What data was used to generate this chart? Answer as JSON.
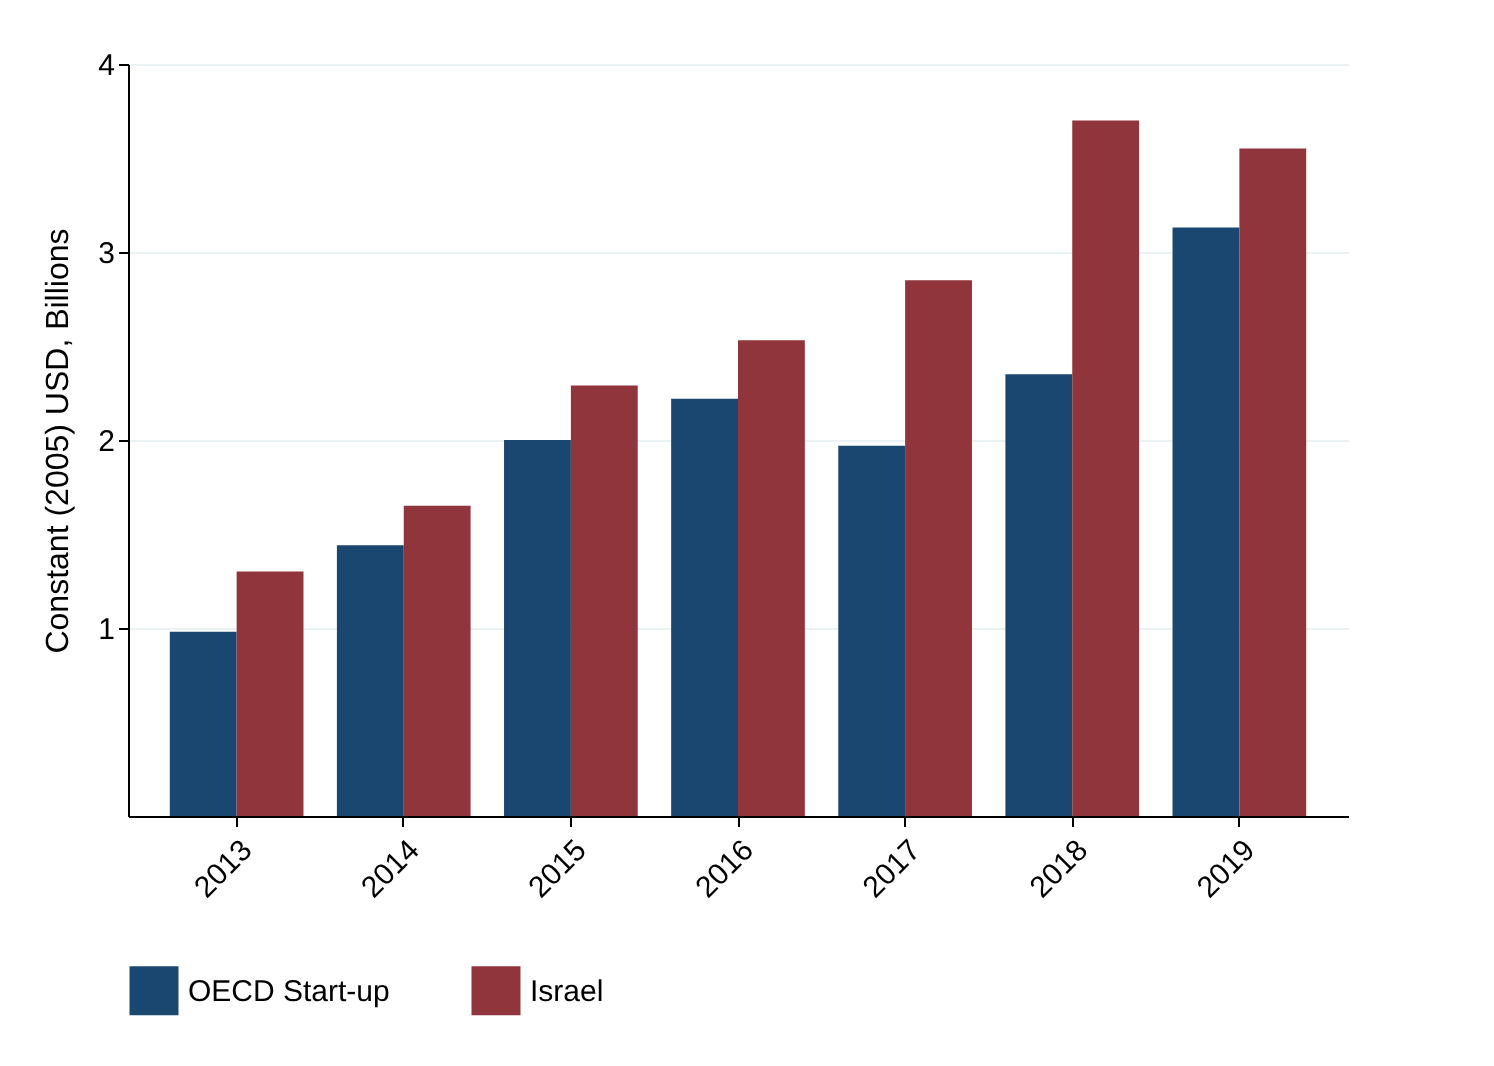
{
  "chart_data": {
    "type": "bar",
    "ylabel": "Constant (2005) USD, Billions",
    "categories": [
      "2013",
      "2014",
      "2015",
      "2016",
      "2017",
      "2018",
      "2019"
    ],
    "series": [
      {
        "name": "OECD Start-up",
        "color": "#1a476f",
        "values": [
          0.98,
          1.44,
          2.0,
          2.22,
          1.97,
          2.35,
          3.13
        ]
      },
      {
        "name": "Israel",
        "color": "#90353b",
        "values": [
          1.3,
          1.65,
          2.29,
          2.53,
          2.85,
          3.7,
          3.55
        ]
      }
    ],
    "ylim": [
      0,
      4
    ],
    "yticks": [
      1,
      2,
      3,
      4
    ],
    "grid": "y",
    "legend": "bottom"
  }
}
